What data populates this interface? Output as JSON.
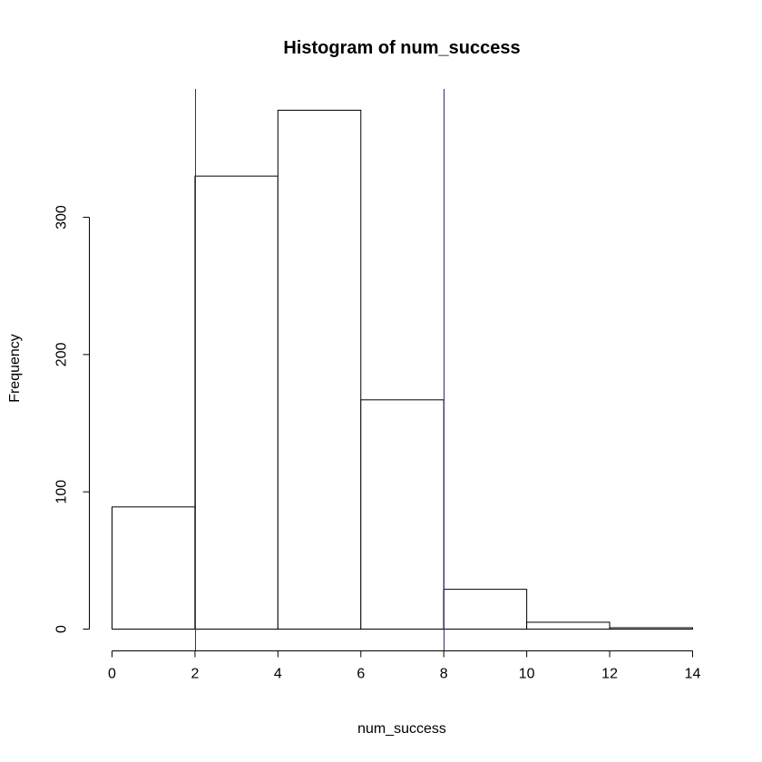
{
  "chart_data": {
    "type": "bar",
    "title": "Histogram of num_success",
    "xlabel": "num_success",
    "ylabel": "Frequency",
    "bins": [
      {
        "x0": 0,
        "x1": 2,
        "count": 89
      },
      {
        "x0": 2,
        "x1": 4,
        "count": 330
      },
      {
        "x0": 4,
        "x1": 6,
        "count": 378
      },
      {
        "x0": 6,
        "x1": 8,
        "count": 167
      },
      {
        "x0": 8,
        "x1": 10,
        "count": 29
      },
      {
        "x0": 10,
        "x1": 12,
        "count": 5
      },
      {
        "x0": 12,
        "x1": 14,
        "count": 1
      }
    ],
    "xlim": [
      0,
      14
    ],
    "ylim": [
      0,
      378
    ],
    "x_ticks": [
      0,
      2,
      4,
      6,
      8,
      10,
      12,
      14
    ],
    "y_ticks": [
      0,
      100,
      200,
      300
    ],
    "ref_lines_x": [
      2,
      8
    ],
    "ref_line_color": "#2d2d7a",
    "grid": false
  }
}
